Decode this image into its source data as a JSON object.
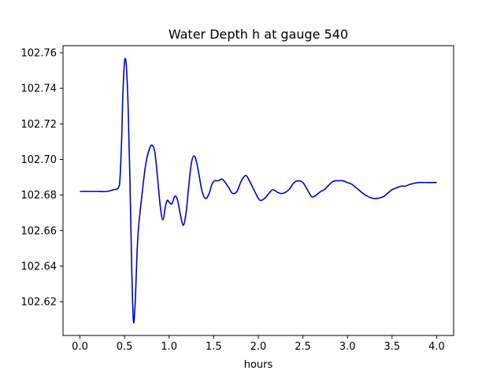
{
  "chart_data": {
    "type": "line",
    "title": "Water Depth h at gauge 540",
    "xlabel": "hours",
    "ylabel": "",
    "xlim": [
      -0.19,
      4.19
    ],
    "ylim": [
      102.601,
      102.764
    ],
    "xticks": [
      0.0,
      0.5,
      1.0,
      1.5,
      2.0,
      2.5,
      3.0,
      3.5,
      4.0
    ],
    "xtick_labels": [
      "0.0",
      "0.5",
      "1.0",
      "1.5",
      "2.0",
      "2.5",
      "3.0",
      "3.5",
      "4.0"
    ],
    "yticks": [
      102.62,
      102.64,
      102.66,
      102.68,
      102.7,
      102.72,
      102.74,
      102.76
    ],
    "ytick_labels": [
      "102.62",
      "102.64",
      "102.66",
      "102.68",
      "102.70",
      "102.72",
      "102.74",
      "102.76"
    ],
    "grid": false,
    "series": [
      {
        "color": "#0000cc",
        "x": [
          0.0,
          0.1,
          0.2,
          0.3,
          0.38,
          0.43,
          0.45,
          0.47,
          0.48,
          0.5,
          0.52,
          0.54,
          0.56,
          0.58,
          0.6,
          0.62,
          0.65,
          0.7,
          0.74,
          0.78,
          0.81,
          0.84,
          0.87,
          0.9,
          0.93,
          0.96,
          0.98,
          1.0,
          1.03,
          1.06,
          1.08,
          1.1,
          1.13,
          1.16,
          1.19,
          1.22,
          1.25,
          1.28,
          1.31,
          1.34,
          1.37,
          1.41,
          1.45,
          1.48,
          1.51,
          1.55,
          1.59,
          1.63,
          1.67,
          1.71,
          1.76,
          1.81,
          1.86,
          1.9,
          1.94,
          1.98,
          2.02,
          2.07,
          2.12,
          2.16,
          2.2,
          2.24,
          2.28,
          2.32,
          2.36,
          2.4,
          2.45,
          2.5,
          2.55,
          2.6,
          2.65,
          2.7,
          2.74,
          2.78,
          2.82,
          2.86,
          2.9,
          2.95,
          3.0,
          3.05,
          3.1,
          3.2,
          3.3,
          3.4,
          3.45,
          3.5,
          3.55,
          3.6,
          3.65,
          3.7,
          3.8,
          3.9,
          4.0
        ],
        "y": [
          102.682,
          102.682,
          102.682,
          102.682,
          102.683,
          102.684,
          102.69,
          102.715,
          102.735,
          102.755,
          102.753,
          102.73,
          102.69,
          102.64,
          102.609,
          102.62,
          102.657,
          102.682,
          102.698,
          102.706,
          102.708,
          102.704,
          102.69,
          102.674,
          102.666,
          102.674,
          102.677,
          102.676,
          102.675,
          102.679,
          102.679,
          102.676,
          102.668,
          102.663,
          102.67,
          102.685,
          102.698,
          102.702,
          102.698,
          102.69,
          102.682,
          102.678,
          102.681,
          102.686,
          102.688,
          102.688,
          102.689,
          102.687,
          102.684,
          102.681,
          102.682,
          102.688,
          102.691,
          102.688,
          102.684,
          102.68,
          102.677,
          102.678,
          102.681,
          102.683,
          102.682,
          102.681,
          102.681,
          102.682,
          102.684,
          102.687,
          102.688,
          102.687,
          102.683,
          102.679,
          102.68,
          102.682,
          102.683,
          102.685,
          102.687,
          102.688,
          102.688,
          102.688,
          102.687,
          102.686,
          102.684,
          102.68,
          102.678,
          102.679,
          102.681,
          102.683,
          102.684,
          102.685,
          102.685,
          102.686,
          102.687,
          102.687,
          102.687
        ]
      }
    ]
  }
}
